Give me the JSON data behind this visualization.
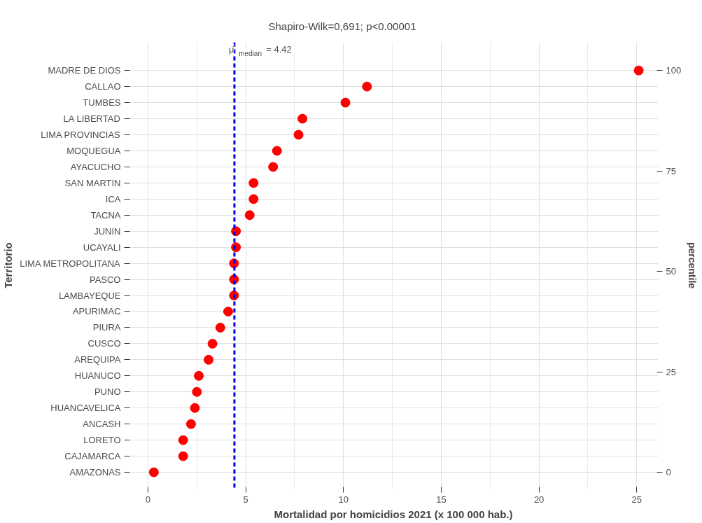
{
  "chart_data": {
    "type": "scatter",
    "orientation": "horizontal",
    "title": "Shapiro-Wilk=0,691; p<0.00001",
    "xlabel": "Mortalidad por homicidios 2021 (x 100 000 hab.)",
    "ylabel": "Territorio",
    "y2label": "percentile",
    "categories": [
      "MADRE DE DIOS",
      "CALLAO",
      "TUMBES",
      "LA LIBERTAD",
      "LIMA PROVINCIAS",
      "MOQUEGUA",
      "AYACUCHO",
      "SAN MARTIN",
      "ICA",
      "TACNA",
      "JUNIN",
      "UCAYALI",
      "LIMA METROPOLITANA",
      "PASCO",
      "LAMBAYEQUE",
      "APURIMAC",
      "PIURA",
      "CUSCO",
      "AREQUIPA",
      "HUANUCO",
      "PUNO",
      "HUANCAVELICA",
      "ANCASH",
      "LORETO",
      "CAJAMARCA",
      "AMAZONAS"
    ],
    "series": [
      {
        "color": "#ff0000",
        "values": [
          25.1,
          11.2,
          10.1,
          7.9,
          7.7,
          6.6,
          6.4,
          5.4,
          5.4,
          5.2,
          4.5,
          4.5,
          4.4,
          4.4,
          4.4,
          4.1,
          3.7,
          3.3,
          3.1,
          2.6,
          2.5,
          2.4,
          2.2,
          1.8,
          1.8,
          0.3
        ]
      }
    ],
    "xlim": [
      -1,
      26.1
    ],
    "xticks": [
      0,
      5,
      10,
      15,
      20,
      25
    ],
    "y2lim": [
      -4,
      107
    ],
    "y2ticks": [
      0,
      25,
      50,
      75,
      100
    ],
    "ref_lines": [
      {
        "axis": "x",
        "value": 4.42,
        "label": "μ̂$_{median}$ = 4.42",
        "color": "#0000ff",
        "line_style": "dashed"
      }
    ],
    "grid": true,
    "marker": "circle"
  }
}
